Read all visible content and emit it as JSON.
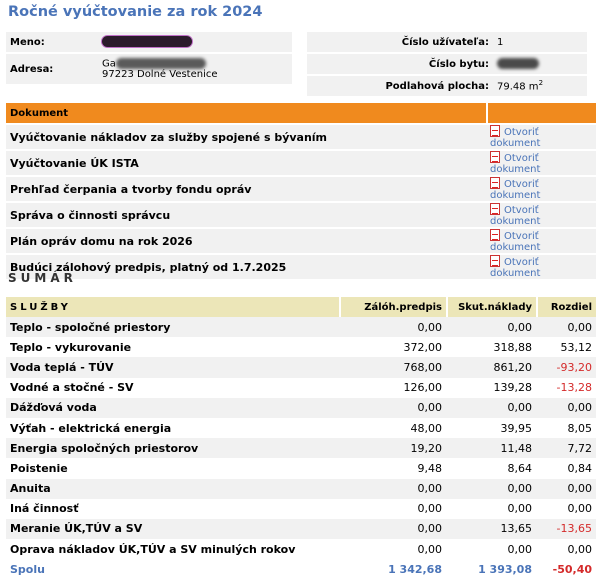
{
  "page_title": "Ročné vyúčtovanie za rok 2024",
  "owner": {
    "name_label": "Meno:",
    "address_label": "Adresa:",
    "address_line1": "Ga",
    "address_line2": "97223 Dolné Vestenice"
  },
  "unit": {
    "user_number_label": "Číslo užívateľa:",
    "user_number": "1",
    "flat_number_label": "Číslo bytu:",
    "floor_area_label": "Podlahová plocha:",
    "floor_area_value": "79.48 m",
    "floor_area_unit_sup": "2"
  },
  "documents": {
    "header": "Dokument",
    "link_label": "Otvoriť dokument",
    "items": [
      "Vyúčtovanie nákladov za služby spojené s bývaním",
      "Vyúčtovanie ÚK ISTA",
      "Prehľad čerpania a tvorby fondu opráv",
      "Správa o činnosti správcu",
      "Plán opráv domu na rok 2026",
      "Budúci zálohový predpis, platný od 1.7.2025"
    ]
  },
  "summary": {
    "heading": "SUMÁR",
    "columns": [
      "SLUŽBY",
      "Zálóh.predpis",
      "Skut.náklady",
      "Rozdiel"
    ],
    "rows": [
      {
        "name": "Teplo - spoločné priestory",
        "advance": "0,00",
        "actual": "0,00",
        "diff": "0,00",
        "negative": false
      },
      {
        "name": "Teplo - vykurovanie",
        "advance": "372,00",
        "actual": "318,88",
        "diff": "53,12",
        "negative": false
      },
      {
        "name": "Voda teplá - TÚV",
        "advance": "768,00",
        "actual": "861,20",
        "diff": "-93,20",
        "negative": true
      },
      {
        "name": "Vodné a stočné - SV",
        "advance": "126,00",
        "actual": "139,28",
        "diff": "-13,28",
        "negative": true
      },
      {
        "name": "Dážďová voda",
        "advance": "0,00",
        "actual": "0,00",
        "diff": "0,00",
        "negative": false
      },
      {
        "name": "Výťah - elektrická energia",
        "advance": "48,00",
        "actual": "39,95",
        "diff": "8,05",
        "negative": false
      },
      {
        "name": "Energia spoločných priestorov",
        "advance": "19,20",
        "actual": "11,48",
        "diff": "7,72",
        "negative": false
      },
      {
        "name": "Poistenie",
        "advance": "9,48",
        "actual": "8,64",
        "diff": "0,84",
        "negative": false
      },
      {
        "name": "Anuita",
        "advance": "0,00",
        "actual": "0,00",
        "diff": "0,00",
        "negative": false
      },
      {
        "name": "Iná činnosť",
        "advance": "0,00",
        "actual": "0,00",
        "diff": "0,00",
        "negative": false
      },
      {
        "name": "Meranie ÚK,TÚV a SV",
        "advance": "0,00",
        "actual": "13,65",
        "diff": "-13,65",
        "negative": true
      },
      {
        "name": "Oprava nákladov ÚK,TÚV a SV minulých rokov",
        "advance": "0,00",
        "actual": "0,00",
        "diff": "0,00",
        "negative": false
      }
    ],
    "total": {
      "name": "Spolu",
      "advance": "1 342,68",
      "actual": "1 393,08",
      "diff": "-50,40"
    }
  },
  "colors": {
    "title_blue": "#4a74b8",
    "document_header_orange": "#f08a1e",
    "summary_header_beige": "#ece6b8",
    "negative_red": "#d42a2a",
    "row_gray": "#f1f1f1"
  },
  "icons": {
    "document_link": "pdf-file-icon"
  }
}
